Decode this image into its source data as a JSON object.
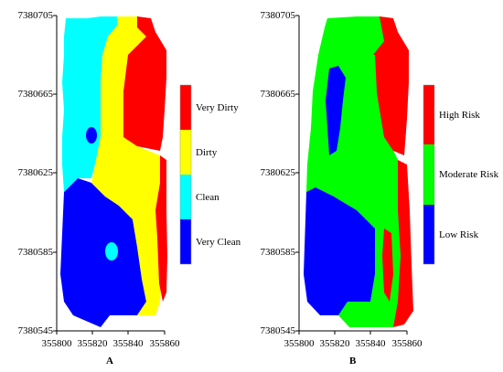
{
  "panels": [
    {
      "id": "A",
      "label": "A",
      "y_ticks": [
        "7380705",
        "7380665",
        "7380625",
        "7380585",
        "7380545"
      ],
      "x_ticks": [
        "355800",
        "355820",
        "355840",
        "355860"
      ],
      "legend": [
        {
          "label": "Very Dirty",
          "color": "#ff0000"
        },
        {
          "label": "Dirty",
          "color": "#ffff00"
        },
        {
          "label": "Clean",
          "color": "#00ffff"
        },
        {
          "label": "Very Clean",
          "color": "#0000ff"
        }
      ]
    },
    {
      "id": "B",
      "label": "B",
      "y_ticks": [
        "7380705",
        "7380665",
        "7380625",
        "7380585",
        "7380545"
      ],
      "x_ticks": [
        "355800",
        "355820",
        "355840",
        "355860"
      ],
      "legend": [
        {
          "label": "High Risk",
          "color": "#ff0000"
        },
        {
          "label": "Moderate Risk",
          "color": "#00ff00"
        },
        {
          "label": "Low Risk",
          "color": "#0000ff"
        }
      ]
    }
  ]
}
